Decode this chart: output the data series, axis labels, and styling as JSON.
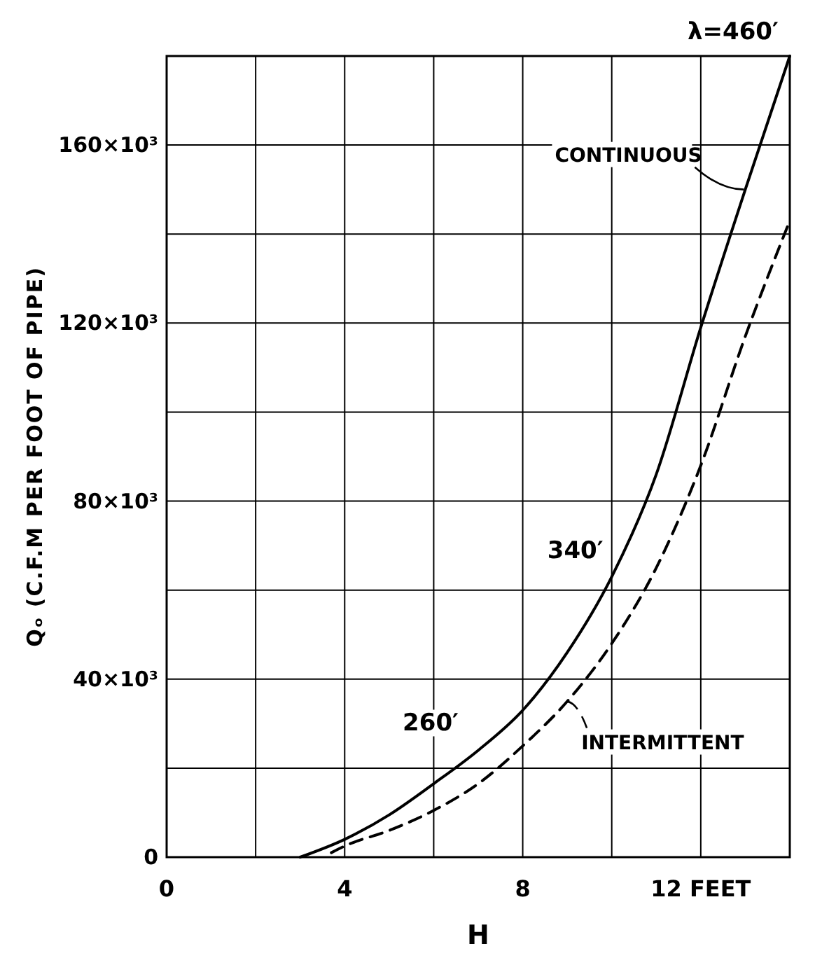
{
  "chart_data": {
    "type": "line",
    "xlabel": "H",
    "ylabel": "Qₒ (C.F.M PER FOOT OF PIPE)",
    "xlim": [
      0,
      14
    ],
    "ylim": [
      0,
      180000
    ],
    "xticks": [
      0,
      {
        "value": 2,
        "label": null
      },
      4,
      {
        "value": 6,
        "label": null
      },
      8,
      {
        "value": 10,
        "label": null
      },
      {
        "value": 12,
        "label": "12 FEET"
      },
      {
        "value": 14,
        "label": null
      }
    ],
    "yticks": [
      0,
      {
        "value": 20000,
        "label": null
      },
      {
        "value": 40000,
        "label": "40×10³"
      },
      {
        "value": 60000,
        "label": null
      },
      {
        "value": 80000,
        "label": "80×10³"
      },
      {
        "value": 100000,
        "label": null
      },
      {
        "value": 120000,
        "label": "120×10³"
      },
      {
        "value": 140000,
        "label": null
      },
      {
        "value": 160000,
        "label": "160×10³"
      },
      {
        "value": 180000,
        "label": null
      }
    ],
    "grid": true,
    "marker": "none",
    "series": [
      {
        "name": "CONTINUOUS",
        "color": "#000000",
        "line_style": "solid",
        "x": [
          3,
          4,
          5,
          6,
          7,
          8,
          9,
          10,
          11,
          12,
          13,
          14
        ],
        "values": [
          0,
          4000,
          9500,
          16500,
          24000,
          33000,
          46000,
          63000,
          86000,
          119000,
          150000,
          180000
        ]
      },
      {
        "name": "INTERMITTENT",
        "color": "#000000",
        "line_style": "dashed",
        "x": [
          3.7,
          4,
          5,
          6,
          7,
          8,
          9,
          10,
          11,
          12,
          13,
          14
        ],
        "values": [
          1000,
          2500,
          6000,
          10500,
          16500,
          25000,
          35000,
          48000,
          65000,
          88000,
          117000,
          143000
        ]
      }
    ],
    "annotations": [
      {
        "text": "λ=460′",
        "x": 14,
        "y": 180000
      },
      {
        "text": "340′",
        "x": 10,
        "y": 64000
      },
      {
        "text": "260′",
        "x": 7,
        "y": 24000
      }
    ]
  }
}
